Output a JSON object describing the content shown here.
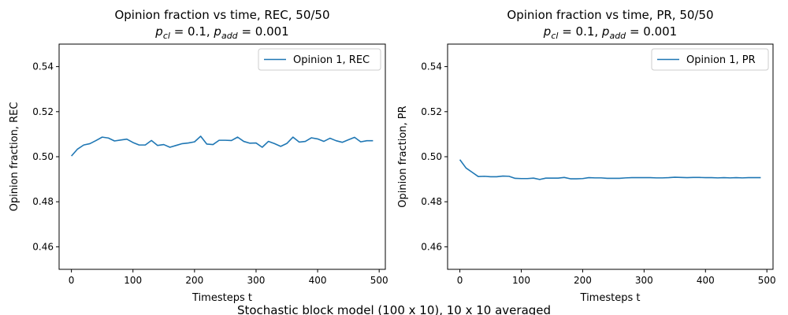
{
  "figure": {
    "suptitle": "Stochastic block model (100 x 10), 10 x 10 averaged"
  },
  "chart_data": [
    {
      "type": "line",
      "title_line1": "Opinion fraction vs time, REC, 50/50",
      "title_line2": {
        "p1": "p",
        "p1_sub": "cl",
        "mid": " = 0.1, ",
        "p2": "p",
        "p2_sub": "add",
        "end": " = 0.001"
      },
      "xlabel": "Timesteps t",
      "ylabel": "Opinion fraction, REC",
      "xlim": [
        -20,
        510
      ],
      "ylim": [
        0.45,
        0.55
      ],
      "xticks": [
        0,
        100,
        200,
        300,
        400,
        500
      ],
      "yticks": [
        0.46,
        0.48,
        0.5,
        0.52,
        0.54
      ],
      "ytick_labels": [
        "0.46",
        "0.48",
        "0.50",
        "0.52",
        "0.54"
      ],
      "legend_position": "upper right",
      "series_color": "#1f77b4",
      "series": [
        {
          "name": "Opinion 1, REC",
          "x": [
            0,
            10,
            20,
            30,
            40,
            50,
            60,
            70,
            80,
            90,
            100,
            110,
            120,
            130,
            140,
            150,
            160,
            170,
            180,
            190,
            200,
            210,
            220,
            230,
            240,
            250,
            260,
            270,
            280,
            290,
            300,
            310,
            320,
            330,
            340,
            350,
            360,
            370,
            380,
            390,
            400,
            410,
            420,
            430,
            440,
            450,
            460,
            470,
            480,
            490
          ],
          "y": [
            0.5003,
            0.5034,
            0.5052,
            0.5058,
            0.5072,
            0.5087,
            0.5083,
            0.507,
            0.5074,
            0.5078,
            0.5063,
            0.5052,
            0.5052,
            0.5072,
            0.505,
            0.5054,
            0.5042,
            0.505,
            0.5058,
            0.5061,
            0.5066,
            0.5091,
            0.5056,
            0.5054,
            0.5073,
            0.5073,
            0.5072,
            0.5087,
            0.5068,
            0.506,
            0.5061,
            0.5042,
            0.5068,
            0.5058,
            0.5046,
            0.5059,
            0.5087,
            0.5065,
            0.5068,
            0.5084,
            0.5079,
            0.5068,
            0.5082,
            0.5071,
            0.5064,
            0.5075,
            0.5086,
            0.5066,
            0.5071,
            0.5071
          ]
        }
      ]
    },
    {
      "type": "line",
      "title_line1": "Opinion fraction vs time, PR, 50/50",
      "title_line2": {
        "p1": "p",
        "p1_sub": "cl",
        "mid": " = 0.1, ",
        "p2": "p",
        "p2_sub": "add",
        "end": " = 0.001"
      },
      "xlabel": "Timesteps t",
      "ylabel": "Opinion fraction, PR",
      "xlim": [
        -20,
        510
      ],
      "ylim": [
        0.45,
        0.55
      ],
      "xticks": [
        0,
        100,
        200,
        300,
        400,
        500
      ],
      "yticks": [
        0.46,
        0.48,
        0.5,
        0.52,
        0.54
      ],
      "ytick_labels": [
        "0.46",
        "0.48",
        "0.50",
        "0.52",
        "0.54"
      ],
      "legend_position": "upper right",
      "series_color": "#1f77b4",
      "series": [
        {
          "name": "Opinion 1, PR",
          "x": [
            0,
            10,
            20,
            30,
            40,
            50,
            60,
            70,
            80,
            90,
            100,
            110,
            120,
            130,
            140,
            150,
            160,
            170,
            180,
            190,
            200,
            210,
            220,
            230,
            240,
            250,
            260,
            270,
            280,
            290,
            300,
            310,
            320,
            330,
            340,
            350,
            360,
            370,
            380,
            390,
            400,
            410,
            420,
            430,
            440,
            450,
            460,
            470,
            480,
            490
          ],
          "y": [
            0.4987,
            0.495,
            0.4931,
            0.4912,
            0.4913,
            0.4911,
            0.4911,
            0.4914,
            0.4913,
            0.4904,
            0.4903,
            0.4903,
            0.4905,
            0.4899,
            0.4905,
            0.4905,
            0.4905,
            0.4908,
            0.4902,
            0.4902,
            0.4903,
            0.4907,
            0.4906,
            0.4906,
            0.4904,
            0.4904,
            0.4904,
            0.4906,
            0.4907,
            0.4907,
            0.4907,
            0.4907,
            0.4906,
            0.4906,
            0.4907,
            0.4909,
            0.4908,
            0.4907,
            0.4908,
            0.4908,
            0.4907,
            0.4907,
            0.4906,
            0.4907,
            0.4906,
            0.4907,
            0.4906,
            0.4907,
            0.4907,
            0.4907
          ]
        }
      ]
    }
  ]
}
